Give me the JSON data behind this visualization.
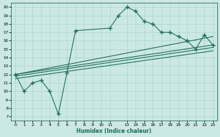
{
  "title": "",
  "xlabel": "Humidex (Indice chaleur)",
  "bg_color": "#cce8e4",
  "line_color": "#1a6b5a",
  "grid_color": "#b0d8d0",
  "xlim": [
    -0.5,
    23.5
  ],
  "ylim": [
    6.5,
    20.5
  ],
  "xticks": [
    0,
    1,
    2,
    3,
    4,
    5,
    6,
    7,
    8,
    9,
    10,
    11,
    13,
    14,
    15,
    16,
    17,
    18,
    19,
    20,
    21,
    22,
    23
  ],
  "yticks": [
    7,
    8,
    9,
    10,
    11,
    12,
    13,
    14,
    15,
    16,
    17,
    18,
    19,
    20
  ],
  "line1_x": [
    0,
    1,
    2,
    3,
    4,
    5,
    6,
    7,
    11,
    12,
    13,
    14,
    15,
    16,
    17,
    18,
    19,
    20,
    21,
    22,
    23
  ],
  "line1_y": [
    12,
    10,
    11,
    11.3,
    10,
    7.3,
    12.2,
    17.2,
    17.5,
    19,
    20,
    19.5,
    18.3,
    18,
    17,
    17,
    16.5,
    16,
    15,
    16.7,
    15.5
  ],
  "line2_x": [
    0,
    23
  ],
  "line2_y": [
    12.0,
    16.5
  ],
  "line3_x": [
    0,
    23
  ],
  "line3_y": [
    12.0,
    15.5
  ],
  "line4_x": [
    0,
    23
  ],
  "line4_y": [
    11.8,
    15.2
  ],
  "line5_x": [
    0,
    23
  ],
  "line5_y": [
    11.5,
    14.8
  ]
}
